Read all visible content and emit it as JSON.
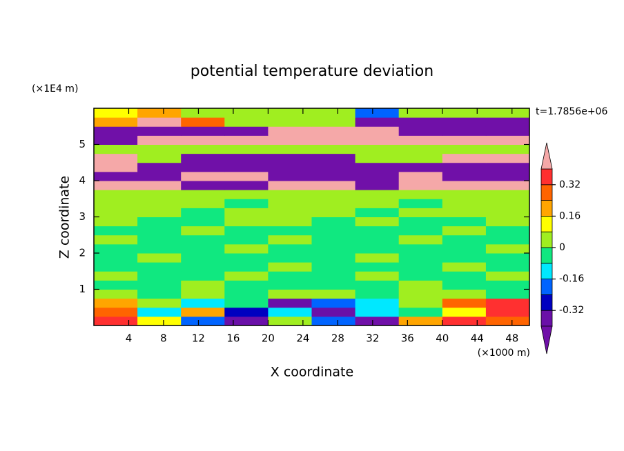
{
  "chart_data": {
    "type": "contour",
    "title": "potential temperature deviation",
    "xlabel": "X coordinate",
    "ylabel": "Z coordinate",
    "x_unit": "(×1000 m)",
    "y_unit": "(×1E4 m)",
    "time_label": "t=1.7856e+06",
    "xlim": [
      0,
      50
    ],
    "ylim": [
      0,
      6
    ],
    "xticks": [
      4,
      8,
      12,
      16,
      20,
      24,
      28,
      32,
      36,
      40,
      44,
      48
    ],
    "yticks": [
      1,
      2,
      3,
      4,
      5
    ],
    "x": [
      2.5,
      7.5,
      12.5,
      17.5,
      22.5,
      27.5,
      32.5,
      37.5,
      42.5,
      47.5
    ],
    "y": [
      0.125,
      0.375,
      0.625,
      0.875,
      1.125,
      1.375,
      1.625,
      1.875,
      2.125,
      2.375,
      2.625,
      2.875,
      3.125,
      3.375,
      3.625,
      3.875,
      4.125,
      4.375,
      4.625,
      4.875,
      5.125,
      5.375,
      5.625,
      5.875
    ],
    "z": [
      [
        0.36,
        0.12,
        -0.2,
        -0.36,
        0.04,
        -0.2,
        -0.45,
        0.2,
        0.36,
        0.28
      ],
      [
        0.28,
        -0.12,
        0.2,
        -0.28,
        -0.12,
        -0.36,
        -0.12,
        -0.04,
        0.12,
        0.36
      ],
      [
        0.2,
        0.04,
        -0.12,
        -0.04,
        -0.36,
        -0.2,
        -0.12,
        0.04,
        0.28,
        0.36
      ],
      [
        0.04,
        -0.04,
        0.04,
        -0.04,
        0.04,
        0.04,
        -0.04,
        0.04,
        0.04,
        -0.04
      ],
      [
        -0.04,
        -0.04,
        0.04,
        -0.04,
        -0.04,
        -0.04,
        -0.04,
        0.04,
        -0.04,
        -0.04
      ],
      [
        0.04,
        -0.04,
        -0.04,
        0.04,
        -0.04,
        -0.04,
        0.04,
        -0.04,
        -0.04,
        0.04
      ],
      [
        -0.04,
        -0.04,
        -0.04,
        -0.04,
        0.04,
        -0.04,
        -0.04,
        -0.04,
        0.04,
        -0.04
      ],
      [
        -0.04,
        0.04,
        -0.04,
        -0.04,
        -0.04,
        -0.04,
        0.04,
        -0.04,
        -0.04,
        -0.04
      ],
      [
        -0.04,
        -0.04,
        -0.04,
        0.04,
        -0.04,
        -0.04,
        -0.04,
        -0.04,
        -0.04,
        0.04
      ],
      [
        0.04,
        -0.04,
        -0.04,
        -0.04,
        0.04,
        -0.04,
        -0.04,
        0.04,
        -0.04,
        -0.04
      ],
      [
        -0.04,
        -0.04,
        0.04,
        -0.04,
        -0.04,
        -0.04,
        -0.04,
        -0.04,
        0.04,
        -0.04
      ],
      [
        0.04,
        -0.04,
        -0.04,
        0.04,
        0.04,
        -0.04,
        0.04,
        -0.04,
        -0.04,
        0.04
      ],
      [
        0.04,
        0.04,
        -0.04,
        0.04,
        0.04,
        0.04,
        -0.04,
        0.04,
        0.04,
        0.04
      ],
      [
        0.04,
        0.04,
        0.04,
        -0.04,
        0.04,
        0.04,
        0.04,
        -0.04,
        0.04,
        0.04
      ],
      [
        0.04,
        0.04,
        0.04,
        0.04,
        0.04,
        0.04,
        0.04,
        0.04,
        0.04,
        0.04
      ],
      [
        0.45,
        0.45,
        -0.45,
        -0.45,
        0.45,
        0.45,
        -0.45,
        0.45,
        0.45,
        0.45
      ],
      [
        -0.45,
        -0.45,
        0.45,
        0.45,
        -0.45,
        -0.45,
        -0.45,
        0.45,
        -0.45,
        -0.45
      ],
      [
        0.45,
        -0.45,
        -0.45,
        -0.45,
        -0.45,
        -0.45,
        -0.45,
        -0.45,
        -0.45,
        -0.45
      ],
      [
        0.45,
        0.04,
        -0.45,
        -0.45,
        -0.45,
        -0.45,
        0.04,
        0.04,
        0.45,
        0.45
      ],
      [
        0.04,
        0.04,
        0.04,
        0.04,
        0.04,
        0.04,
        0.04,
        0.04,
        0.04,
        0.04
      ],
      [
        -0.45,
        0.45,
        0.45,
        0.45,
        0.45,
        0.45,
        0.45,
        0.45,
        0.45,
        0.45
      ],
      [
        -0.45,
        -0.45,
        -0.45,
        -0.45,
        0.45,
        0.45,
        0.45,
        -0.45,
        -0.45,
        -0.45
      ],
      [
        0.2,
        0.45,
        0.28,
        0.04,
        0.04,
        0.04,
        -0.45,
        -0.45,
        -0.45,
        -0.45
      ],
      [
        0.12,
        0.2,
        0.04,
        0.04,
        0.04,
        0.04,
        -0.2,
        0.04,
        0.04,
        0.04
      ]
    ],
    "levels": [
      -0.4,
      -0.32,
      -0.24,
      -0.16,
      -0.08,
      0,
      0.08,
      0.16,
      0.24,
      0.32,
      0.4
    ],
    "colors": [
      "#7010a8",
      "#6a10a8",
      "#0000c0",
      "#0064ff",
      "#00e8ff",
      "#10e880",
      "#a0ee20",
      "#ffff00",
      "#ffa500",
      "#ff6400",
      "#ff3030",
      "#f5a8a8"
    ],
    "colorbar_ticks": [
      -0.32,
      -0.16,
      0,
      0.16,
      0.32
    ]
  }
}
